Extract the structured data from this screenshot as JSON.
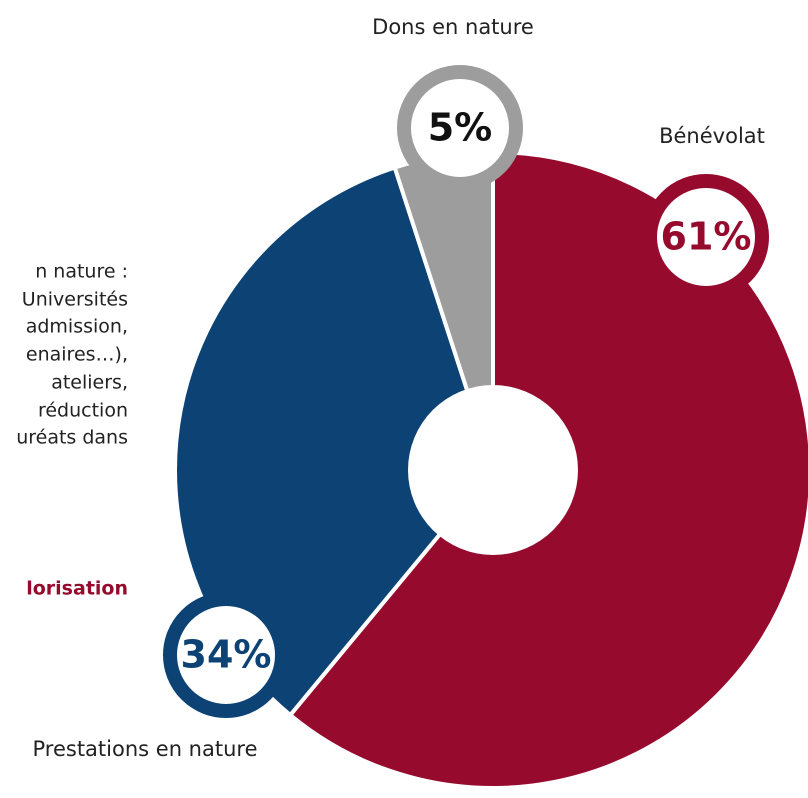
{
  "chart_data": {
    "type": "pie",
    "categories": [
      "Bénévolat",
      "Prestations en nature",
      "Dons en nature"
    ],
    "values": [
      61,
      34,
      5
    ],
    "value_labels": [
      "61%",
      "34%",
      "5%"
    ],
    "colors": [
      "#960b2d",
      "#0d4275",
      "#9d9d9d"
    ],
    "annotations": [
      "n nature :",
      "Universités",
      "admission,",
      "enaires…),",
      "ateliers,",
      "réduction",
      "uréats dans",
      "lorisation"
    ]
  }
}
